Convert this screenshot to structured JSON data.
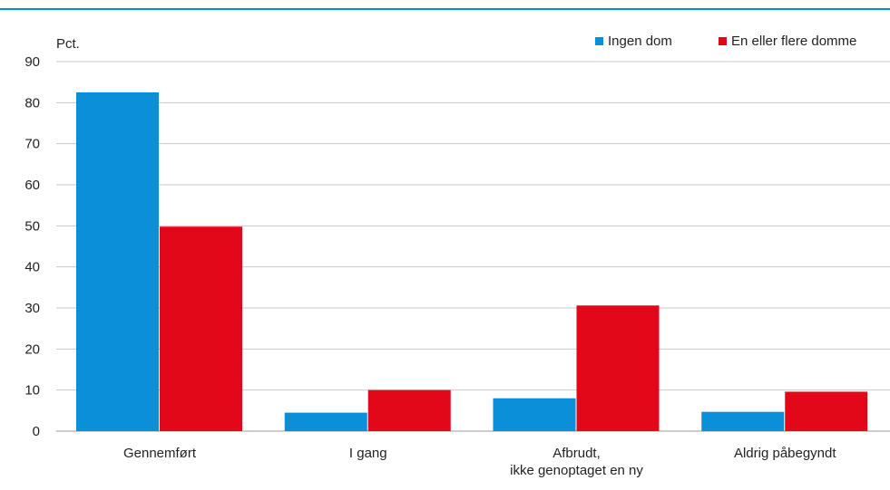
{
  "chart_data": {
    "type": "bar",
    "ylabel": "Pct.",
    "ylim": [
      0,
      90
    ],
    "yticks": [
      0,
      10,
      20,
      30,
      40,
      50,
      60,
      70,
      80,
      90
    ],
    "grid": true,
    "legend_position": "top-right",
    "categories": [
      [
        "Gennemført"
      ],
      [
        "I gang"
      ],
      [
        "Afbrudt,",
        "ikke genoptaget en ny"
      ],
      [
        "Aldrig påbegyndt"
      ]
    ],
    "series": [
      {
        "name": "Ingen dom",
        "color": "#0b8fd6",
        "values": [
          82.5,
          4.5,
          8.0,
          4.7
        ]
      },
      {
        "name": "En eller flere domme",
        "color": "#e3071a",
        "values": [
          49.8,
          10.0,
          30.6,
          9.6
        ]
      }
    ],
    "colors": {
      "top_rule": "#0b8fd6",
      "grid": "#c8c8c8"
    }
  }
}
